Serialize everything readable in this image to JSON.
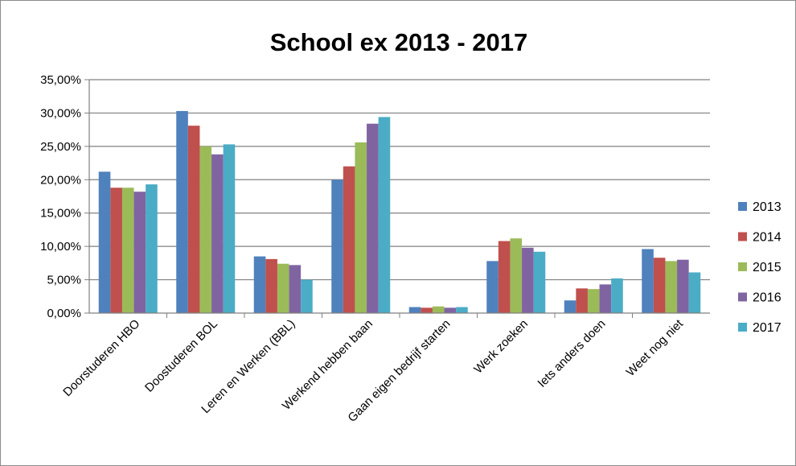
{
  "chart_data": {
    "type": "bar",
    "title": "School ex 2013 - 2017",
    "xlabel": "",
    "ylabel": "",
    "ylim": [
      0,
      35
    ],
    "ytick_step": 5,
    "ytick_labels": [
      "0,00%",
      "5,00%",
      "10,00%",
      "15,00%",
      "20,00%",
      "25,00%",
      "30,00%",
      "35,00%"
    ],
    "grid": true,
    "legend_position": "right",
    "categories": [
      "Doorstuderen HBO",
      "Doostuderen BOL",
      "Leren en Werken (BBL)",
      "Werkend hebben baan",
      "Gaan eigen bedrijf starten",
      "Werk zoeken",
      "Iets anders doen",
      "Weet nog niet"
    ],
    "series": [
      {
        "name": "2013",
        "color": "#4F81BD",
        "values": [
          21.2,
          30.3,
          8.5,
          20.0,
          0.9,
          7.8,
          1.9,
          9.6
        ]
      },
      {
        "name": "2014",
        "color": "#C0504D",
        "values": [
          18.8,
          28.1,
          8.1,
          22.0,
          0.8,
          10.8,
          3.7,
          8.3
        ]
      },
      {
        "name": "2015",
        "color": "#9BBB59",
        "values": [
          18.8,
          25.0,
          7.4,
          25.6,
          1.0,
          11.2,
          3.6,
          7.8
        ]
      },
      {
        "name": "2016",
        "color": "#8064A2",
        "values": [
          18.2,
          23.8,
          7.2,
          28.4,
          0.8,
          9.8,
          4.3,
          8.0
        ]
      },
      {
        "name": "2017",
        "color": "#4BACC6",
        "values": [
          19.3,
          25.3,
          5.0,
          29.4,
          0.9,
          9.2,
          5.2,
          6.1
        ]
      }
    ]
  }
}
